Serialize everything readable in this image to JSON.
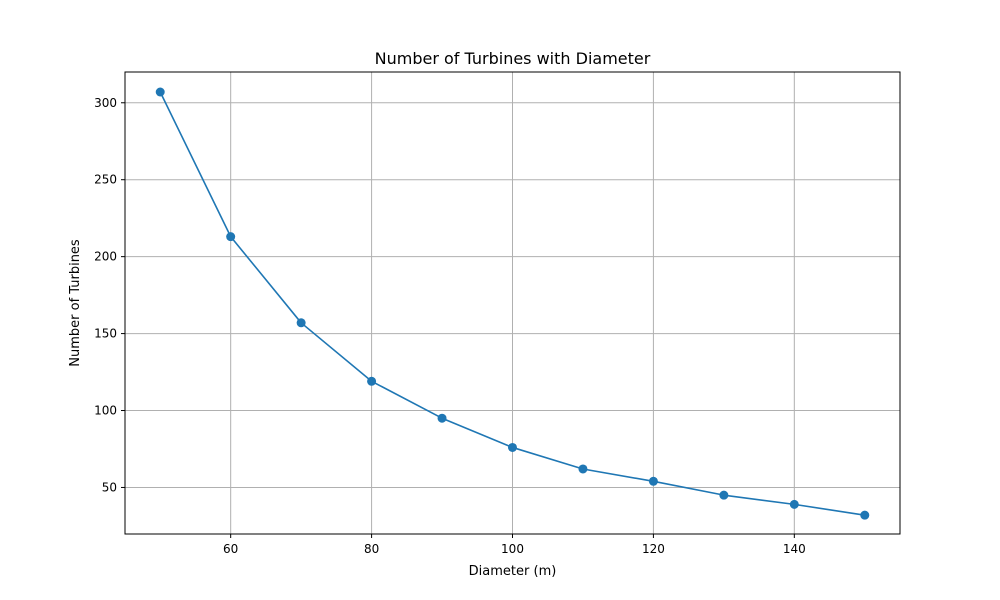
{
  "chart_data": {
    "type": "line",
    "title": "Number of Turbines with Diameter",
    "xlabel": "Diameter (m)",
    "ylabel": "Number of Turbines",
    "x": [
      50,
      60,
      70,
      80,
      90,
      100,
      110,
      120,
      130,
      140,
      150
    ],
    "series": [
      {
        "values": [
          307,
          213,
          157,
          119,
          95,
          76,
          62,
          54,
          45,
          39,
          32
        ],
        "color": "#1f77b4",
        "marker": "circle"
      }
    ],
    "xlim": [
      45,
      155
    ],
    "ylim": [
      19.75,
      320
    ],
    "xticks": [
      60,
      80,
      100,
      120,
      140
    ],
    "yticks": [
      50,
      100,
      150,
      200,
      250,
      300
    ],
    "grid": true,
    "legend": "none"
  }
}
